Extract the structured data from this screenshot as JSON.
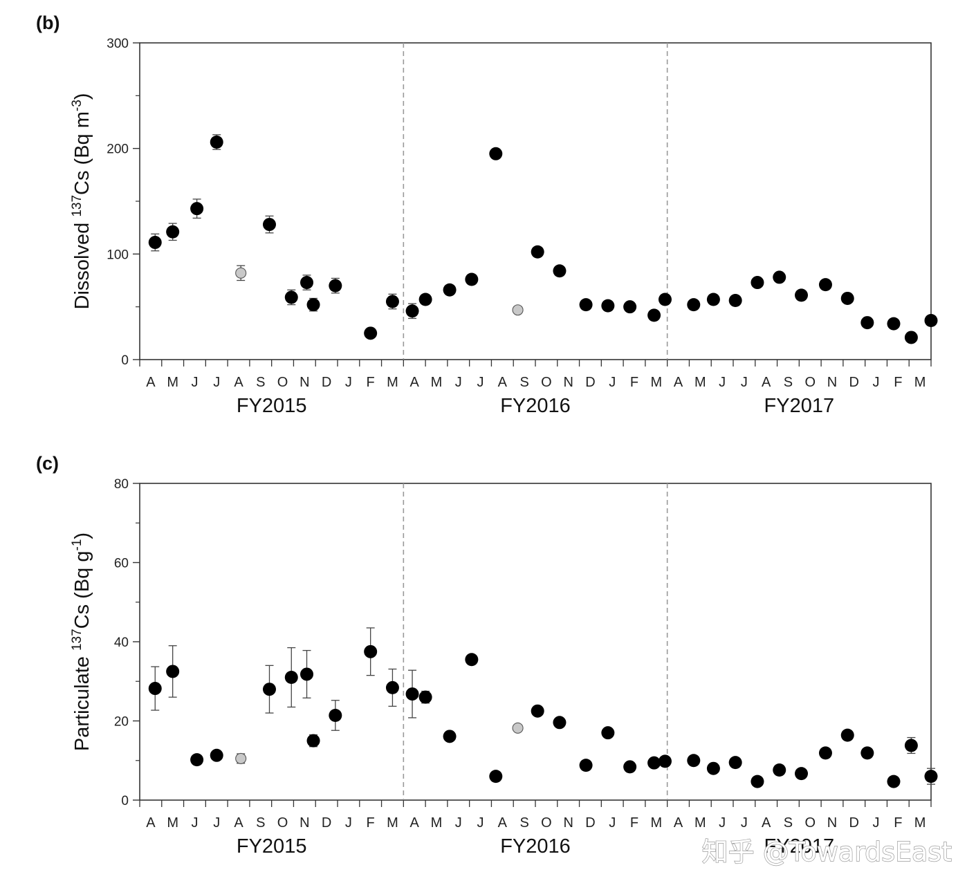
{
  "watermark": "知乎 @TowardsEast",
  "colors": {
    "filled": "#000000",
    "open": "#c8c8c8",
    "axis": "#333333",
    "divider": "#999999",
    "errorbar": "#444444"
  },
  "chart_data": [
    {
      "panel_label": "(b)",
      "type": "scatter",
      "title": "",
      "ylabel_prefix": "Dissolved ",
      "ylabel_sup1": "137",
      "ylabel_mid": "Cs (Bq m",
      "ylabel_sup2": "-3",
      "ylabel_suffix": ")",
      "ylim": [
        0,
        300
      ],
      "yticks": [
        "0",
        "100",
        "200",
        "300"
      ],
      "month_labels": [
        "A",
        "M",
        "J",
        "J",
        "A",
        "S",
        "O",
        "N",
        "D",
        "J",
        "F",
        "M",
        "A",
        "M",
        "J",
        "J",
        "A",
        "S",
        "O",
        "N",
        "D",
        "J",
        "F",
        "M",
        "A",
        "M",
        "J",
        "J",
        "A",
        "S",
        "O",
        "N",
        "D",
        "J",
        "F",
        "M"
      ],
      "fiscal_years": [
        "FY2015",
        "FY2016",
        "FY2017"
      ],
      "points": [
        {
          "x": 0.2,
          "y": 111,
          "err": 8,
          "open": false
        },
        {
          "x": 1.0,
          "y": 121,
          "err": 8,
          "open": false
        },
        {
          "x": 2.1,
          "y": 143,
          "err": 9,
          "open": false
        },
        {
          "x": 3.0,
          "y": 206,
          "err": 7,
          "open": false
        },
        {
          "x": 4.1,
          "y": 82,
          "err": 7,
          "open": true
        },
        {
          "x": 5.4,
          "y": 128,
          "err": 8,
          "open": false
        },
        {
          "x": 6.4,
          "y": 59,
          "err": 7,
          "open": false
        },
        {
          "x": 7.1,
          "y": 73,
          "err": 7,
          "open": false
        },
        {
          "x": 7.4,
          "y": 52,
          "err": 6,
          "open": false
        },
        {
          "x": 8.4,
          "y": 70,
          "err": 7,
          "open": false
        },
        {
          "x": 10.0,
          "y": 25,
          "err": 0,
          "open": false
        },
        {
          "x": 11.0,
          "y": 55,
          "err": 7,
          "open": false
        },
        {
          "x": 11.9,
          "y": 46,
          "err": 7,
          "open": false
        },
        {
          "x": 12.5,
          "y": 57,
          "err": 0,
          "open": false
        },
        {
          "x": 13.6,
          "y": 66,
          "err": 0,
          "open": false
        },
        {
          "x": 14.6,
          "y": 76,
          "err": 0,
          "open": false
        },
        {
          "x": 15.7,
          "y": 195,
          "err": 0,
          "open": false
        },
        {
          "x": 16.7,
          "y": 47,
          "err": 3,
          "open": true
        },
        {
          "x": 17.6,
          "y": 102,
          "err": 0,
          "open": false
        },
        {
          "x": 18.6,
          "y": 84,
          "err": 0,
          "open": false
        },
        {
          "x": 19.8,
          "y": 52,
          "err": 0,
          "open": false
        },
        {
          "x": 20.8,
          "y": 51,
          "err": 0,
          "open": false
        },
        {
          "x": 21.8,
          "y": 50,
          "err": 0,
          "open": false
        },
        {
          "x": 22.9,
          "y": 42,
          "err": 0,
          "open": false
        },
        {
          "x": 23.4,
          "y": 57,
          "err": 0,
          "open": false
        },
        {
          "x": 24.7,
          "y": 52,
          "err": 0,
          "open": false
        },
        {
          "x": 25.6,
          "y": 57,
          "err": 0,
          "open": false
        },
        {
          "x": 26.6,
          "y": 56,
          "err": 0,
          "open": false
        },
        {
          "x": 27.6,
          "y": 73,
          "err": 0,
          "open": false
        },
        {
          "x": 28.6,
          "y": 78,
          "err": 0,
          "open": false
        },
        {
          "x": 29.6,
          "y": 61,
          "err": 0,
          "open": false
        },
        {
          "x": 30.7,
          "y": 71,
          "err": 4,
          "open": false
        },
        {
          "x": 31.7,
          "y": 58,
          "err": 0,
          "open": false
        },
        {
          "x": 32.6,
          "y": 35,
          "err": 0,
          "open": false
        },
        {
          "x": 33.8,
          "y": 34,
          "err": 0,
          "open": false
        },
        {
          "x": 34.6,
          "y": 21,
          "err": 0,
          "open": false
        },
        {
          "x": 35.5,
          "y": 37,
          "err": 0,
          "open": false
        }
      ]
    },
    {
      "panel_label": "(c)",
      "type": "scatter",
      "title": "",
      "ylabel_prefix": "Particulate ",
      "ylabel_sup1": "137",
      "ylabel_mid": "Cs (Bq g",
      "ylabel_sup2": "-1",
      "ylabel_suffix": ")",
      "ylim": [
        0,
        80
      ],
      "yticks": [
        "0",
        "20",
        "40",
        "60",
        "80"
      ],
      "month_labels": [
        "A",
        "M",
        "J",
        "J",
        "A",
        "S",
        "O",
        "N",
        "D",
        "J",
        "F",
        "M",
        "A",
        "M",
        "J",
        "J",
        "A",
        "S",
        "O",
        "N",
        "D",
        "J",
        "F",
        "M",
        "A",
        "M",
        "J",
        "J",
        "A",
        "S",
        "O",
        "N",
        "D",
        "J",
        "F",
        "M"
      ],
      "fiscal_years": [
        "FY2015",
        "FY2016",
        "FY2017"
      ],
      "points": [
        {
          "x": 0.2,
          "y": 28.2,
          "err": 5.5,
          "open": false
        },
        {
          "x": 1.0,
          "y": 32.5,
          "err": 6.5,
          "open": false
        },
        {
          "x": 2.1,
          "y": 10.2,
          "err": 0,
          "open": false
        },
        {
          "x": 3.0,
          "y": 11.3,
          "err": 0,
          "open": false
        },
        {
          "x": 4.1,
          "y": 10.5,
          "err": 1.2,
          "open": true
        },
        {
          "x": 5.4,
          "y": 28.0,
          "err": 6.0,
          "open": false
        },
        {
          "x": 6.4,
          "y": 31.0,
          "err": 7.5,
          "open": false
        },
        {
          "x": 7.1,
          "y": 31.8,
          "err": 6.0,
          "open": false
        },
        {
          "x": 7.4,
          "y": 15.0,
          "err": 1.5,
          "open": false
        },
        {
          "x": 8.4,
          "y": 21.4,
          "err": 3.8,
          "open": false
        },
        {
          "x": 10.0,
          "y": 37.5,
          "err": 6.0,
          "open": false
        },
        {
          "x": 11.0,
          "y": 28.4,
          "err": 4.7,
          "open": false
        },
        {
          "x": 11.9,
          "y": 26.8,
          "err": 6.0,
          "open": false
        },
        {
          "x": 12.5,
          "y": 26.0,
          "err": 1.5,
          "open": false
        },
        {
          "x": 13.6,
          "y": 16.1,
          "err": 0,
          "open": false
        },
        {
          "x": 14.6,
          "y": 35.5,
          "err": 0,
          "open": false
        },
        {
          "x": 15.7,
          "y": 6.0,
          "err": 0,
          "open": false
        },
        {
          "x": 16.7,
          "y": 18.2,
          "err": 0.8,
          "open": true
        },
        {
          "x": 17.6,
          "y": 22.5,
          "err": 0,
          "open": false
        },
        {
          "x": 18.6,
          "y": 19.6,
          "err": 0,
          "open": false
        },
        {
          "x": 19.8,
          "y": 8.8,
          "err": 0,
          "open": false
        },
        {
          "x": 20.8,
          "y": 17.0,
          "err": 0,
          "open": false
        },
        {
          "x": 21.8,
          "y": 8.4,
          "err": 0,
          "open": false
        },
        {
          "x": 22.9,
          "y": 9.4,
          "err": 0,
          "open": false
        },
        {
          "x": 23.4,
          "y": 9.8,
          "err": 0,
          "open": false
        },
        {
          "x": 24.7,
          "y": 10.0,
          "err": 0,
          "open": false
        },
        {
          "x": 25.6,
          "y": 8.0,
          "err": 0,
          "open": false
        },
        {
          "x": 26.6,
          "y": 9.5,
          "err": 0,
          "open": false
        },
        {
          "x": 27.6,
          "y": 4.7,
          "err": 0,
          "open": false
        },
        {
          "x": 28.6,
          "y": 7.6,
          "err": 0,
          "open": false
        },
        {
          "x": 29.6,
          "y": 6.7,
          "err": 0,
          "open": false
        },
        {
          "x": 30.7,
          "y": 11.9,
          "err": 0,
          "open": false
        },
        {
          "x": 31.7,
          "y": 16.4,
          "err": 0,
          "open": false
        },
        {
          "x": 32.6,
          "y": 11.9,
          "err": 0,
          "open": false
        },
        {
          "x": 33.8,
          "y": 4.7,
          "err": 0,
          "open": false
        },
        {
          "x": 34.6,
          "y": 13.8,
          "err": 2.0,
          "open": false
        },
        {
          "x": 35.5,
          "y": 6.0,
          "err": 2.0,
          "open": false
        }
      ]
    }
  ]
}
